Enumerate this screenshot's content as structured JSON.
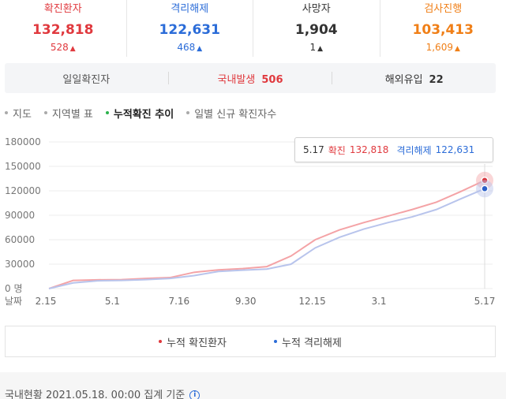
{
  "stats": [
    {
      "label": "확진환자",
      "value": "132,818",
      "delta": "528",
      "color": "#e0393e"
    },
    {
      "label": "격리해제",
      "value": "122,631",
      "delta": "468",
      "color": "#2b6cd8"
    },
    {
      "label": "사망자",
      "value": "1,904",
      "delta": "1",
      "color": "#333333"
    },
    {
      "label": "검사진행",
      "value": "103,413",
      "delta": "1,609",
      "color": "#f07f17"
    }
  ],
  "daily_tabs": [
    {
      "label": "일일확진자",
      "value": ""
    },
    {
      "label": "국내발생",
      "value": "506"
    },
    {
      "label": "해외유입",
      "value": "22"
    }
  ],
  "view_tabs": [
    "지도",
    "지역별 표",
    "누적확진 추이",
    "일별 신규 확진자수"
  ],
  "active_view_tab": "누적확진 추이",
  "tooltip": {
    "date": "5.17",
    "confirmed_label": "확진",
    "confirmed_value": "132,818",
    "released_label": "격리해제",
    "released_value": "122,631"
  },
  "chart_data": {
    "type": "line",
    "xlabel": "날짜",
    "x_ticks": [
      "2.15",
      "5.1",
      "7.16",
      "9.30",
      "12.15",
      "3.1",
      "5.17"
    ],
    "y_ticks": [
      "180000",
      "150000",
      "120000",
      "90000",
      "60000",
      "30000",
      "0 명"
    ],
    "ylim": [
      0,
      180000
    ],
    "grid": true,
    "legend_position": "bottom",
    "series": [
      {
        "name": "누적 확진환자",
        "color": "#f4a3a6",
        "values": [
          29,
          10000,
          10800,
          11000,
          12500,
          13500,
          20000,
          23000,
          24600,
          27000,
          40000,
          60000,
          72000,
          81000,
          89000,
          97000,
          106000,
          119000,
          132818
        ]
      },
      {
        "name": "누적 격리해제",
        "color": "#b8c4ec",
        "values": [
          16,
          7000,
          9600,
          10000,
          11000,
          12500,
          16000,
          21000,
          22600,
          24000,
          30000,
          50000,
          63000,
          73000,
          81000,
          88000,
          97000,
          110000,
          122631
        ]
      }
    ]
  },
  "footer": {
    "text": "국내현황 2021.05.18. 00:00 집계 기준",
    "info_icon": "ⓘ"
  }
}
